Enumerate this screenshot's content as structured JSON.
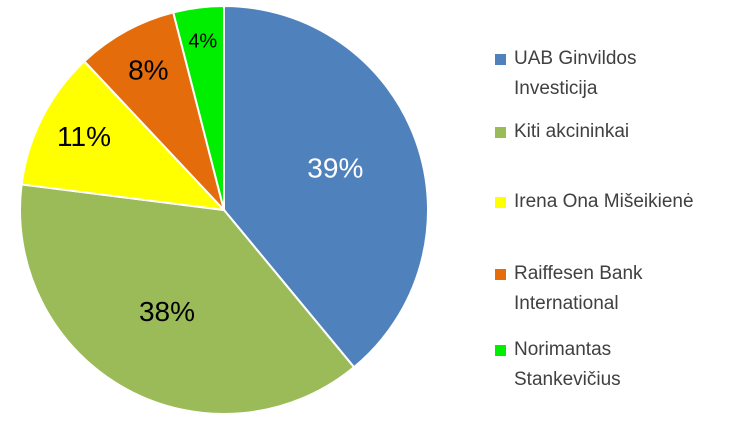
{
  "chart_data": {
    "type": "pie",
    "categories": [
      "UAB Ginvildos Investicija",
      "Kiti akcininkai",
      "Irena Ona Mišeikienė",
      "Raiffesen Bank International",
      "Norimantas Stankevičius"
    ],
    "values": [
      39,
      38,
      11,
      8,
      4
    ],
    "value_labels": [
      "39%",
      "38%",
      "11%",
      "8%",
      "4%"
    ],
    "colors": [
      "#4f81bd",
      "#9bbb59",
      "#ffff00",
      "#e46c0a",
      "#00ee00"
    ],
    "label_colors": [
      "#ffffff",
      "#000000",
      "#000000",
      "#000000",
      "#000000"
    ],
    "legend": "right"
  }
}
